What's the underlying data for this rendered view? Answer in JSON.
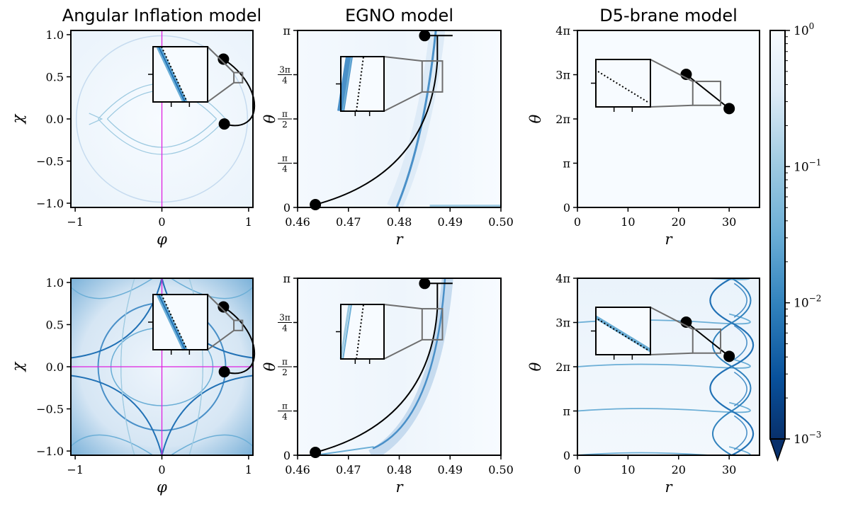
{
  "figure": {
    "colorbar": {
      "ticks": [
        {
          "base": "10",
          "exp": "0",
          "value": 1
        },
        {
          "base": "10",
          "exp": "−1",
          "value": 0.1
        },
        {
          "base": "10",
          "exp": "−2",
          "value": 0.01
        },
        {
          "base": "10",
          "exp": "−3",
          "value": 0.001
        }
      ],
      "scale": "log",
      "range": [
        0.001,
        1
      ],
      "colormap": "Blues_r",
      "color_low": "#08306b",
      "color_high": "#f7fbff",
      "extend": "min"
    },
    "trajectory_color": "#000000",
    "guide_line_color": "#e020e0"
  },
  "chart_data": [
    {
      "type": "heatmap",
      "title": "Angular Inflation model",
      "xlabel": "φ",
      "ylabel": "χ",
      "xlim": [
        -1.05,
        1.05
      ],
      "ylim": [
        -1.05,
        1.05
      ],
      "xticks": [
        {
          "v": -1,
          "label": "−1"
        },
        {
          "v": 0,
          "label": "0"
        },
        {
          "v": 1,
          "label": "1"
        }
      ],
      "yticks": [
        {
          "v": 1.0,
          "label": "1.0"
        },
        {
          "v": 0.5,
          "label": "0.5"
        },
        {
          "v": 0.0,
          "label": "0.0"
        },
        {
          "v": -0.5,
          "label": "−0.5"
        },
        {
          "v": -1.0,
          "label": "−1.0"
        }
      ],
      "trajectory": {
        "start": [
          0.72,
          -0.06
        ],
        "end": [
          0.71,
          0.71
        ]
      },
      "guide_lines": {
        "vertical": 0
      },
      "inset": {
        "zoom_region": [
          0.83,
          0.43,
          0.93,
          0.55
        ],
        "dotted_line": true
      }
    },
    {
      "type": "heatmap",
      "title": "EGNO model",
      "xlabel": "r",
      "ylabel": "θ",
      "xlim": [
        0.46,
        0.5
      ],
      "ylim": [
        0,
        3.1416
      ],
      "xticks": [
        {
          "v": 0.46,
          "label": "0.46"
        },
        {
          "v": 0.47,
          "label": "0.47"
        },
        {
          "v": 0.48,
          "label": "0.48"
        },
        {
          "v": 0.49,
          "label": "0.49"
        },
        {
          "v": 0.5,
          "label": "0.50"
        }
      ],
      "yticks": [
        {
          "v": 0,
          "num": "0"
        },
        {
          "v": 0.7854,
          "num": "π",
          "den": "4"
        },
        {
          "v": 1.5708,
          "num": "π",
          "den": "2"
        },
        {
          "v": 2.3562,
          "num": "3π",
          "den": "4"
        },
        {
          "v": 3.1416,
          "num": "π"
        }
      ],
      "trajectory": {
        "start": [
          0.4635,
          0.05
        ],
        "end": [
          0.485,
          3.05
        ]
      },
      "inset": {
        "zoom_region": [
          0.4845,
          2.05,
          0.4885,
          2.6
        ],
        "dotted_line": true
      }
    },
    {
      "type": "heatmap",
      "title": "D5-brane model",
      "xlabel": "r",
      "ylabel": "θ",
      "xlim": [
        0,
        36
      ],
      "ylim": [
        0,
        12.566
      ],
      "xticks": [
        {
          "v": 0,
          "label": "0"
        },
        {
          "v": 10,
          "label": "10"
        },
        {
          "v": 20,
          "label": "20"
        },
        {
          "v": 30,
          "label": "30"
        }
      ],
      "yticks": [
        {
          "v": 0,
          "label": "0"
        },
        {
          "v": 3.1416,
          "label": "π"
        },
        {
          "v": 6.2832,
          "label": "2π"
        },
        {
          "v": 9.4248,
          "label": "3π"
        },
        {
          "v": 12.566,
          "label": "4π"
        }
      ],
      "trajectory": {
        "start": [
          21.5,
          9.45
        ],
        "end": [
          30,
          7.02
        ]
      },
      "inset": {
        "zoom_region": [
          22.8,
          7.25,
          28.3,
          8.95
        ],
        "dotted_line": true
      }
    },
    {
      "type": "heatmap",
      "title": "",
      "xlabel": "φ",
      "ylabel": "χ",
      "xlim": [
        -1.05,
        1.05
      ],
      "ylim": [
        -1.05,
        1.05
      ],
      "xticks": [
        {
          "v": -1,
          "label": "−1"
        },
        {
          "v": 0,
          "label": "0"
        },
        {
          "v": 1,
          "label": "1"
        }
      ],
      "yticks": [
        {
          "v": 1.0,
          "label": "1.0"
        },
        {
          "v": 0.5,
          "label": "0.5"
        },
        {
          "v": 0.0,
          "label": "0.0"
        },
        {
          "v": -0.5,
          "label": "−0.5"
        },
        {
          "v": -1.0,
          "label": "−1.0"
        }
      ],
      "trajectory": {
        "start": [
          0.72,
          -0.06
        ],
        "end": [
          0.71,
          0.71
        ]
      },
      "guide_lines": {
        "vertical": 0,
        "horizontal": 0
      },
      "inset": {
        "zoom_region": [
          0.83,
          0.43,
          0.93,
          0.55
        ],
        "dotted_line": true
      }
    },
    {
      "type": "heatmap",
      "title": "",
      "xlabel": "r",
      "ylabel": "θ",
      "xlim": [
        0.46,
        0.5
      ],
      "ylim": [
        0,
        3.1416
      ],
      "xticks": [
        {
          "v": 0.46,
          "label": "0.46"
        },
        {
          "v": 0.47,
          "label": "0.47"
        },
        {
          "v": 0.48,
          "label": "0.48"
        },
        {
          "v": 0.49,
          "label": "0.49"
        },
        {
          "v": 0.5,
          "label": "0.50"
        }
      ],
      "yticks": [
        {
          "v": 0,
          "num": "0"
        },
        {
          "v": 0.7854,
          "num": "π",
          "den": "4"
        },
        {
          "v": 1.5708,
          "num": "π",
          "den": "2"
        },
        {
          "v": 2.3562,
          "num": "3π",
          "den": "4"
        },
        {
          "v": 3.1416,
          "num": "π"
        }
      ],
      "trajectory": {
        "start": [
          0.4635,
          0.05
        ],
        "end": [
          0.485,
          3.05
        ]
      },
      "inset": {
        "zoom_region": [
          0.4845,
          2.05,
          0.4885,
          2.6
        ],
        "dotted_line": true
      }
    },
    {
      "type": "heatmap",
      "title": "",
      "xlabel": "r",
      "ylabel": "θ",
      "xlim": [
        0,
        36
      ],
      "ylim": [
        0,
        12.566
      ],
      "xticks": [
        {
          "v": 0,
          "label": "0"
        },
        {
          "v": 10,
          "label": "10"
        },
        {
          "v": 20,
          "label": "20"
        },
        {
          "v": 30,
          "label": "30"
        }
      ],
      "yticks": [
        {
          "v": 0,
          "label": "0"
        },
        {
          "v": 3.1416,
          "label": "π"
        },
        {
          "v": 6.2832,
          "label": "2π"
        },
        {
          "v": 9.4248,
          "label": "3π"
        },
        {
          "v": 12.566,
          "label": "4π"
        }
      ],
      "trajectory": {
        "start": [
          21.5,
          9.45
        ],
        "end": [
          30,
          7.02
        ]
      },
      "inset": {
        "zoom_region": [
          22.8,
          7.25,
          28.3,
          8.95
        ],
        "dotted_line": true
      }
    }
  ]
}
